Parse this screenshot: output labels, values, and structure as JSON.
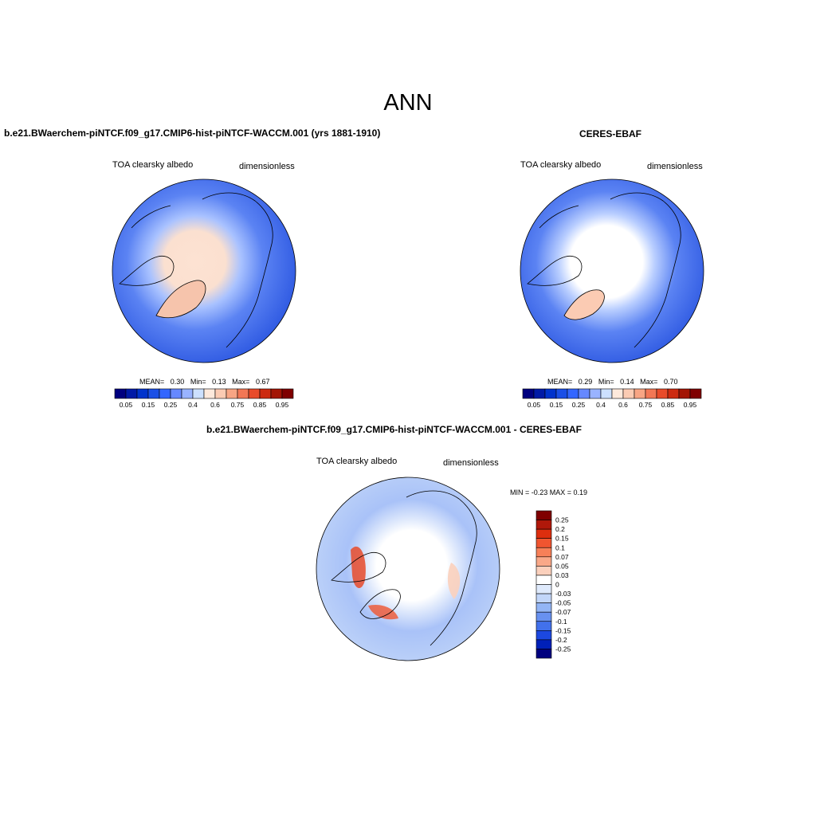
{
  "title": "ANN",
  "panels": {
    "model": {
      "title": "b.e21.BWaerchem-piNTCF.f09_g17.CMIP6-hist-piNTCF-WACCM.001 (yrs 1881-1910)",
      "variable": "TOA clearsky albedo",
      "units": "dimensionless",
      "stats": {
        "mean_label": "MEAN=",
        "mean": "0.30",
        "min_label": "Min=",
        "min": "0.13",
        "max_label": "Max=",
        "max": "0.67"
      }
    },
    "obs": {
      "title": "CERES-EBAF",
      "variable": "TOA clearsky albedo",
      "units": "dimensionless",
      "stats": {
        "mean_label": "MEAN=",
        "mean": "0.29",
        "min_label": "Min=",
        "min": "0.14",
        "max_label": "Max=",
        "max": "0.70"
      }
    },
    "diff": {
      "title": "b.e21.BWaerchem-piNTCF.f09_g17.CMIP6-hist-piNTCF-WACCM.001 - CERES-EBAF",
      "variable": "TOA clearsky albedo",
      "units": "dimensionless",
      "minmax": "MIN =  -0.23 MAX =   0.19"
    }
  },
  "colorbars": {
    "horizontal": {
      "colors": [
        "#00007f",
        "#001aa6",
        "#0033cc",
        "#1a4fe6",
        "#3366ff",
        "#6688ff",
        "#99b3ff",
        "#cce0ff",
        "#fde9dc",
        "#fbcbb3",
        "#f8a584",
        "#f27755",
        "#e84b2a",
        "#cc2a10",
        "#a31505",
        "#7f0000"
      ],
      "tick_labels": [
        "0.05",
        "0.15",
        "0.25",
        "0.4",
        "0.6",
        "0.75",
        "0.85",
        "0.95"
      ]
    },
    "vertical": {
      "colors": [
        "#7f0000",
        "#b0180a",
        "#dd2e0e",
        "#f05530",
        "#f78058",
        "#f9a888",
        "#fbd0bc",
        "#ffffff",
        "#dfeafc",
        "#c2d6f9",
        "#93b5f5",
        "#6891f0",
        "#4271ec",
        "#1c48e0",
        "#0020b8",
        "#00007f"
      ],
      "tick_labels": [
        "0.25",
        "0.2",
        "0.15",
        "0.1",
        "0.07",
        "0.05",
        "0.03",
        "0",
        "-0.03",
        "-0.05",
        "-0.07",
        "-0.1",
        "-0.15",
        "-0.2",
        "-0.25"
      ]
    }
  }
}
